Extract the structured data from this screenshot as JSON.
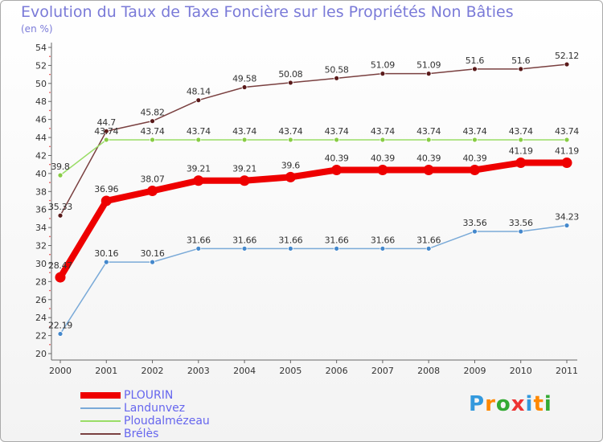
{
  "chart_data": {
    "type": "line",
    "title": "Evolution du Taux de Taxe Foncière sur les Propriétés Non Bâties",
    "subtitle": "(en %)",
    "categories": [
      "2000",
      "2001",
      "2002",
      "2003",
      "2004",
      "2005",
      "2006",
      "2007",
      "2008",
      "2009",
      "2010",
      "2011"
    ],
    "ylim": [
      20,
      54
    ],
    "yticks": [
      20,
      22,
      24,
      26,
      28,
      30,
      32,
      34,
      36,
      38,
      40,
      42,
      44,
      46,
      48,
      50,
      52,
      54
    ],
    "grid": false,
    "series": [
      {
        "name": "Brélès",
        "color": "#7a4040",
        "marker": "#5a1a1a",
        "values": [
          35.33,
          44.7,
          45.82,
          48.14,
          49.58,
          50.08,
          50.58,
          51.09,
          51.09,
          51.6,
          51.6,
          52.12
        ],
        "labels": [
          "35.33",
          "44.7",
          "45.82",
          "48.14",
          "49.58",
          "50.08",
          "50.58",
          "51.09",
          "51.09",
          "51.6",
          "51.6",
          "52.12"
        ]
      },
      {
        "name": "Ploudalmézeau",
        "color": "#99dd66",
        "marker": "#88cc44",
        "values": [
          39.8,
          43.74,
          43.74,
          43.74,
          43.74,
          43.74,
          43.74,
          43.74,
          43.74,
          43.74,
          43.74,
          43.74
        ],
        "labels": [
          "39.8",
          "43.74",
          "43.74",
          "43.74",
          "43.74",
          "43.74",
          "43.74",
          "43.74",
          "43.74",
          "43.74",
          "43.74",
          "43.74"
        ]
      },
      {
        "name": "Landunvez",
        "color": "#7aaad8",
        "marker": "#4488cc",
        "values": [
          22.19,
          30.16,
          30.16,
          31.66,
          31.66,
          31.66,
          31.66,
          31.66,
          31.66,
          33.56,
          33.56,
          34.23
        ],
        "labels": [
          "22.19",
          "30.16",
          "30.16",
          "31.66",
          "31.66",
          "31.66",
          "31.66",
          "31.66",
          "31.66",
          "33.56",
          "33.56",
          "34.23"
        ]
      },
      {
        "name": "PLOURIN",
        "color": "#ee0000",
        "marker": "#ee0000",
        "values": [
          28.47,
          36.96,
          38.07,
          39.21,
          39.21,
          39.6,
          40.39,
          40.39,
          40.39,
          40.39,
          41.19,
          41.19
        ],
        "labels": [
          "28.47",
          "36.96",
          "38.07",
          "39.21",
          "39.21",
          "39.6",
          "40.39",
          "40.39",
          "40.39",
          "40.39",
          "41.19",
          "41.19"
        ]
      }
    ],
    "legend": [
      {
        "name": "PLOURIN",
        "color": "#ee0000",
        "thick": true
      },
      {
        "name": "Landunvez",
        "color": "#7aaad8",
        "thick": false
      },
      {
        "name": "Ploudalmézeau",
        "color": "#99dd66",
        "thick": false
      },
      {
        "name": "Brélès",
        "color": "#7a4040",
        "thick": false
      }
    ]
  },
  "logo": {
    "letters": [
      "P",
      "r",
      "o",
      "x",
      "i",
      "t",
      "i"
    ],
    "colors": [
      "#3399dd",
      "#ff8800",
      "#33aa33",
      "#ee3333",
      "#3399dd",
      "#ff8800",
      "#33aa33"
    ]
  }
}
